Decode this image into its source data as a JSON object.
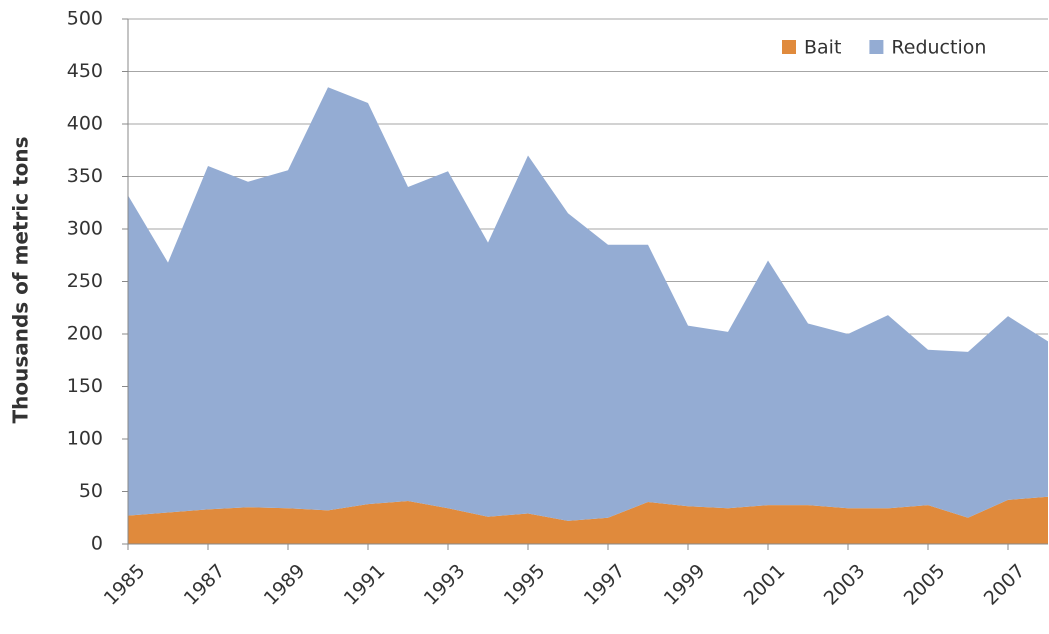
{
  "chart_data": {
    "type": "stacked_area",
    "y_label": "Thousands of metric tons",
    "x": [
      1985,
      1986,
      1987,
      1988,
      1989,
      1990,
      1991,
      1992,
      1993,
      1994,
      1995,
      1996,
      1997,
      1998,
      1999,
      2000,
      2001,
      2002,
      2003,
      2004,
      2005,
      2006,
      2007,
      2008
    ],
    "series": [
      {
        "name": "Bait",
        "color": "#e08a3c",
        "values": [
          27,
          30,
          33,
          35,
          34,
          32,
          38,
          41,
          34,
          26,
          29,
          22,
          25,
          40,
          36,
          34,
          37,
          37,
          34,
          34,
          37,
          25,
          42,
          45
        ]
      },
      {
        "name": "Reduction",
        "color": "#94acd3",
        "values": [
          305,
          238,
          327,
          310,
          322,
          403,
          382,
          299,
          321,
          261,
          341,
          293,
          260,
          245,
          172,
          168,
          233,
          173,
          166,
          184,
          148,
          158,
          175,
          148
        ]
      }
    ],
    "xlim": [
      1985,
      2008
    ],
    "xticks": [
      1985,
      1987,
      1989,
      1991,
      1993,
      1995,
      1997,
      1999,
      2001,
      2003,
      2005,
      2007
    ],
    "ylim": [
      0,
      500
    ],
    "yticks": [
      0,
      50,
      100,
      150,
      200,
      250,
      300,
      350,
      400,
      450,
      500
    ],
    "grid": true,
    "legend": "top-right"
  }
}
